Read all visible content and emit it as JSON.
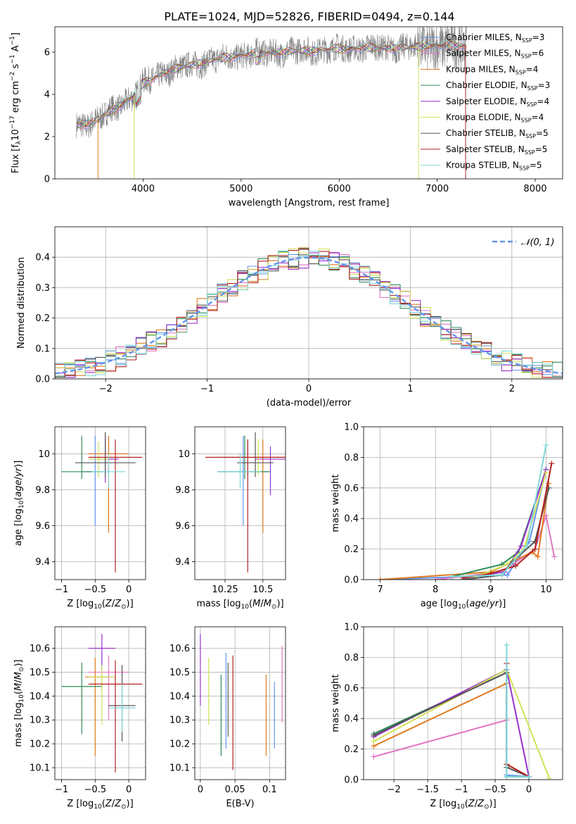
{
  "figure_title": "PLATE=1024, MJD=52826, FIBERID=0494, z=0.144",
  "chart_data": [
    {
      "id": "spectrum",
      "type": "line",
      "xlabel": "wavelength [Angstrom, rest frame]",
      "ylabel": "Flux [f_λ10^-17 erg cm^-2 s^-1 A^-1]",
      "xlim": [
        3100,
        8280
      ],
      "ylim": [
        0,
        7.2
      ],
      "xticks": [
        4000,
        5000,
        6000,
        7000,
        8000
      ],
      "yticks": [
        0,
        2,
        4,
        6
      ],
      "legend_position": "upper-right",
      "series": [
        {
          "name": "Chabrier MILES, N_SSP=3",
          "color": "#6495ed"
        },
        {
          "name": "Salpeter MILES, N_SSP=6",
          "color": "#e377c2"
        },
        {
          "name": "Kroupa MILES, N_SSP=4",
          "color": "#e07b20"
        },
        {
          "name": "Chabrier ELODIE, N_SSP=3",
          "color": "#2e8b57"
        },
        {
          "name": "Salpeter ELODIE, N_SSP=4",
          "color": "#9932cc"
        },
        {
          "name": "Kroupa ELODIE, N_SSP=4",
          "color": "#d4e157"
        },
        {
          "name": "Chabrier STELIB, N_SSP=5",
          "color": "#555555"
        },
        {
          "name": "Salpeter STELIB, N_SSP=5",
          "color": "#b22222"
        },
        {
          "name": "Kroupa STELIB, N_SSP=5",
          "color": "#7fd8d8"
        }
      ],
      "data_color": "#808080",
      "continuum_points": {
        "x": [
          3300,
          3500,
          3700,
          3900,
          4000,
          4200,
          4400,
          4600,
          4800,
          5000,
          5200,
          5400,
          5600,
          5800,
          6000,
          6200,
          6400,
          6600,
          6800,
          7000,
          7200,
          7300
        ],
        "y": [
          2.5,
          2.7,
          3.3,
          3.9,
          4.5,
          5.0,
          5.3,
          5.5,
          5.7,
          5.85,
          5.95,
          6.0,
          6.05,
          6.1,
          6.15,
          6.2,
          6.2,
          6.2,
          6.25,
          6.3,
          6.3,
          6.3
        ]
      }
    },
    {
      "id": "residuals",
      "type": "histogram",
      "xlabel": "(data-model)/error",
      "ylabel": "Normed distribution",
      "xlim": [
        -2.5,
        2.5
      ],
      "ylim": [
        0,
        0.5
      ],
      "xticks": [
        -2,
        -1,
        0,
        1,
        2
      ],
      "yticks": [
        0.0,
        0.1,
        0.2,
        0.3,
        0.4
      ],
      "grid": true,
      "bin_width": 0.1,
      "reference_curve": {
        "name": "𝒩(0, 1)",
        "color": "#6495ed",
        "style": "dashed"
      },
      "legend_position": "upper-right"
    },
    {
      "id": "age_vs_Z",
      "type": "errorbar",
      "xlabel": "Z [log10(Z/Z_⊙)]",
      "ylabel": "age [log10(age/yr)]",
      "xlim": [
        -1.1,
        0.25
      ],
      "ylim": [
        9.3,
        10.15
      ],
      "xticks": [
        -1.0,
        -0.5,
        0.0
      ],
      "yticks": [
        9.4,
        9.6,
        9.8,
        10.0
      ],
      "grid": true,
      "points": [
        {
          "series": 0,
          "x": -0.5,
          "y": 9.9,
          "xerr": 0.2,
          "yerr": [
            0.3,
            0.2
          ]
        },
        {
          "series": 1,
          "x": -0.3,
          "y": 10.0,
          "xerr": 0.3,
          "yerr": [
            0.1,
            0.1
          ]
        },
        {
          "series": 2,
          "x": -0.3,
          "y": 10.0,
          "xerr": 0.3,
          "yerr": [
            0.44,
            0.1
          ]
        },
        {
          "series": 3,
          "x": -0.7,
          "y": 9.9,
          "xerr": 0.3,
          "yerr": [
            0.04,
            0.2
          ]
        },
        {
          "series": 4,
          "x": -0.35,
          "y": 9.97,
          "xerr": 0.2,
          "yerr": [
            0.13,
            0.13
          ]
        },
        {
          "series": 5,
          "x": -0.45,
          "y": 9.97,
          "xerr": 0.15,
          "yerr": [
            0.1,
            0.1
          ]
        },
        {
          "series": 6,
          "x": -0.35,
          "y": 9.95,
          "xerr": 0.45,
          "yerr": [
            0.08,
            0.17
          ]
        },
        {
          "series": 7,
          "x": -0.2,
          "y": 9.98,
          "xerr": 0.4,
          "yerr": [
            0.64,
            0.1
          ]
        },
        {
          "series": 8,
          "x": -0.3,
          "y": 9.9,
          "xerr": 0.25,
          "yerr": [
            0.09,
            0.1
          ]
        }
      ]
    },
    {
      "id": "age_vs_mass",
      "type": "errorbar",
      "xlabel": "mass [log10(M/M_⊙)]",
      "ylabel": "",
      "xlim": [
        10.05,
        10.65
      ],
      "ylim": [
        9.3,
        10.15
      ],
      "xticks": [
        10.25,
        10.5
      ],
      "yticks": [
        9.4,
        9.6,
        9.8,
        10.0
      ],
      "grid": true,
      "points": [
        {
          "series": 0,
          "x": 10.37,
          "y": 9.9,
          "xerr": 0.17,
          "yerr": [
            0.3,
            0.2
          ]
        },
        {
          "series": 1,
          "x": 10.4,
          "y": 9.98,
          "xerr": 0.2,
          "yerr": [
            0.1,
            0.1
          ]
        },
        {
          "series": 2,
          "x": 10.5,
          "y": 9.98,
          "xerr": 0.17,
          "yerr": [
            0.42,
            0.1
          ]
        },
        {
          "series": 3,
          "x": 10.38,
          "y": 9.9,
          "xerr": 0.17,
          "yerr": [
            0.04,
            0.2
          ]
        },
        {
          "series": 4,
          "x": 10.55,
          "y": 9.97,
          "xerr": 0.1,
          "yerr": [
            0.2,
            0.07
          ]
        },
        {
          "series": 5,
          "x": 10.47,
          "y": 9.98,
          "xerr": 0.12,
          "yerr": [
            0.1,
            0.1
          ]
        },
        {
          "series": 6,
          "x": 10.45,
          "y": 9.95,
          "xerr": 0.12,
          "yerr": [
            0.08,
            0.17
          ]
        },
        {
          "series": 7,
          "x": 10.4,
          "y": 9.98,
          "xerr": 0.28,
          "yerr": [
            0.64,
            0.1
          ]
        },
        {
          "series": 8,
          "x": 10.35,
          "y": 9.9,
          "xerr": 0.14,
          "yerr": [
            0.09,
            0.1
          ]
        }
      ]
    },
    {
      "id": "massweight_vs_age",
      "type": "line",
      "xlabel": "age [log10(age/yr)]",
      "ylabel": "mass weight",
      "xlim": [
        6.7,
        10.3
      ],
      "ylim": [
        0.0,
        1.0
      ],
      "xticks": [
        7,
        8,
        9,
        10
      ],
      "yticks": [
        0.0,
        0.2,
        0.4,
        0.6,
        0.8,
        1.0
      ],
      "grid": true,
      "series": [
        {
          "series": 0,
          "x": [
            7.0,
            9.3,
            9.7,
            10.0
          ],
          "y": [
            0.0,
            0.03,
            0.25,
            0.72
          ]
        },
        {
          "series": 1,
          "x": [
            8.0,
            9.2,
            9.8,
            10.0,
            10.15
          ],
          "y": [
            0.0,
            0.05,
            0.2,
            0.42,
            0.15
          ]
        },
        {
          "series": 2,
          "x": [
            7.0,
            9.0,
            9.75,
            9.85,
            10.05
          ],
          "y": [
            0.0,
            0.05,
            0.18,
            0.15,
            0.63
          ]
        },
        {
          "series": 3,
          "x": [
            8.3,
            9.2,
            9.5,
            10.0
          ],
          "y": [
            0.02,
            0.1,
            0.18,
            0.72
          ]
        },
        {
          "series": 4,
          "x": [
            8.5,
            9.25,
            9.55,
            10.0
          ],
          "y": [
            0.01,
            0.05,
            0.22,
            0.72
          ]
        },
        {
          "series": 5,
          "x": [
            8.6,
            9.3,
            9.6,
            10.0
          ],
          "y": [
            0.0,
            0.1,
            0.2,
            0.7
          ]
        },
        {
          "series": 6,
          "x": [
            8.5,
            9.2,
            9.4,
            9.8,
            10.05
          ],
          "y": [
            0.0,
            0.03,
            0.12,
            0.25,
            0.6
          ]
        },
        {
          "series": 7,
          "x": [
            8.5,
            9.0,
            9.45,
            9.8,
            10.1
          ],
          "y": [
            0.01,
            0.04,
            0.09,
            0.2,
            0.76
          ]
        },
        {
          "series": 8,
          "x": [
            8.3,
            9.2,
            9.65,
            10.0
          ],
          "y": [
            0.02,
            0.03,
            0.22,
            0.88
          ]
        }
      ]
    },
    {
      "id": "mass_vs_Z",
      "type": "errorbar",
      "xlabel": "Z [log10(Z/Z_⊙)]",
      "ylabel": "mass [log10(M/M_⊙)]",
      "xlim": [
        -1.1,
        0.25
      ],
      "ylim": [
        10.05,
        10.69
      ],
      "xticks": [
        -1.0,
        -0.5,
        0.0
      ],
      "yticks": [
        10.1,
        10.2,
        10.3,
        10.4,
        10.5,
        10.6
      ],
      "grid": true,
      "points": [
        {
          "series": 0,
          "x": -0.4,
          "y": 10.48,
          "xerr": 0.15,
          "yerr": [
            0.07,
            0.07
          ]
        },
        {
          "series": 1,
          "x": -0.3,
          "y": 10.5,
          "xerr": 0.3,
          "yerr": [
            0.2,
            0.07
          ]
        },
        {
          "series": 2,
          "x": -0.5,
          "y": 10.48,
          "xerr": 0.15,
          "yerr": [
            0.33,
            0.08
          ]
        },
        {
          "series": 3,
          "x": -0.7,
          "y": 10.44,
          "xerr": 0.3,
          "yerr": [
            0.2,
            0.1
          ]
        },
        {
          "series": 4,
          "x": -0.4,
          "y": 10.6,
          "xerr": 0.2,
          "yerr": [
            0.1,
            0.06
          ]
        },
        {
          "series": 5,
          "x": -0.4,
          "y": 10.48,
          "xerr": 0.2,
          "yerr": [
            0.2,
            0.05
          ]
        },
        {
          "series": 6,
          "x": -0.1,
          "y": 10.36,
          "xerr": 0.2,
          "yerr": [
            0.15,
            0.17
          ]
        },
        {
          "series": 7,
          "x": -0.2,
          "y": 10.45,
          "xerr": 0.4,
          "yerr": [
            0.37,
            0.1
          ]
        },
        {
          "series": 8,
          "x": -0.1,
          "y": 10.35,
          "xerr": 0.2,
          "yerr": [
            0.1,
            0.1
          ]
        }
      ]
    },
    {
      "id": "mass_vs_ebv",
      "type": "errorbar",
      "xlabel": "E(B-V)",
      "ylabel": "",
      "xlim": [
        -0.008,
        0.123
      ],
      "ylim": [
        10.05,
        10.69
      ],
      "xticks": [
        0.0,
        0.05,
        0.1
      ],
      "yticks": [
        10.1,
        10.2,
        10.3,
        10.4,
        10.5,
        10.6
      ],
      "grid": true,
      "points": [
        {
          "series": 4,
          "x": 0.0,
          "y": 10.51,
          "yerr": [
            0.15,
            0.15
          ]
        },
        {
          "series": 5,
          "x": 0.012,
          "y": 10.42,
          "yerr": [
            0.14,
            0.14
          ]
        },
        {
          "series": 3,
          "x": 0.03,
          "y": 10.32,
          "yerr": [
            0.17,
            0.17
          ]
        },
        {
          "series": 0,
          "x": 0.037,
          "y": 10.38,
          "yerr": [
            0.2,
            0.2
          ]
        },
        {
          "series": 6,
          "x": 0.04,
          "y": 10.38,
          "yerr": [
            0.15,
            0.16
          ]
        },
        {
          "series": 7,
          "x": 0.047,
          "y": 10.33,
          "yerr": [
            0.24,
            0.24
          ]
        },
        {
          "series": 2,
          "x": 0.095,
          "y": 10.32,
          "yerr": [
            0.17,
            0.17
          ]
        },
        {
          "series": 0,
          "x": 0.107,
          "y": 10.32,
          "yerr": [
            0.14,
            0.14
          ]
        },
        {
          "series": 1,
          "x": 0.118,
          "y": 10.45,
          "yerr": [
            0.16,
            0.16
          ]
        }
      ]
    },
    {
      "id": "massweight_vs_Z",
      "type": "line",
      "xlabel": "Z [log10(Z/Z_⊙)]",
      "ylabel": "mass weight",
      "xlim": [
        -2.45,
        0.5
      ],
      "ylim": [
        0.0,
        1.0
      ],
      "xticks": [
        -2.0,
        -1.5,
        -1.0,
        -0.5,
        0.0
      ],
      "yticks": [
        0.0,
        0.2,
        0.4,
        0.6,
        0.8,
        1.0
      ],
      "grid": true,
      "series": [
        {
          "series": 1,
          "x": [
            -2.3,
            -0.33,
            -0.33,
            0.0
          ],
          "y": [
            0.15,
            0.39,
            0.02,
            0.02
          ]
        },
        {
          "series": 2,
          "x": [
            -2.3,
            -0.33,
            -0.33,
            0.0
          ],
          "y": [
            0.22,
            0.63,
            0.1,
            0.02
          ]
        },
        {
          "series": 3,
          "x": [
            -2.3,
            -0.33,
            -0.33,
            0.0
          ],
          "y": [
            0.3,
            0.7,
            0.02,
            0.02
          ]
        },
        {
          "series": 4,
          "x": [
            -2.3,
            -0.33,
            0.0
          ],
          "y": [
            0.28,
            0.72,
            0.02
          ]
        },
        {
          "series": 5,
          "x": [
            -2.3,
            -0.33,
            0.3
          ],
          "y": [
            0.25,
            0.72,
            0.01
          ]
        },
        {
          "series": 6,
          "x": [
            -2.3,
            -0.33,
            -0.33,
            0.0
          ],
          "y": [
            0.29,
            0.7,
            0.08,
            0.02
          ]
        },
        {
          "series": 7,
          "x": [
            -0.33,
            -0.33,
            0.0
          ],
          "y": [
            0.76,
            0.1,
            0.02
          ]
        },
        {
          "series": 0,
          "x": [
            -0.33,
            -0.33,
            0.0
          ],
          "y": [
            0.72,
            0.03,
            0.02
          ]
        },
        {
          "series": 8,
          "x": [
            -0.33,
            -0.33,
            0.0
          ],
          "y": [
            0.88,
            0.02,
            0.02
          ]
        }
      ]
    }
  ]
}
